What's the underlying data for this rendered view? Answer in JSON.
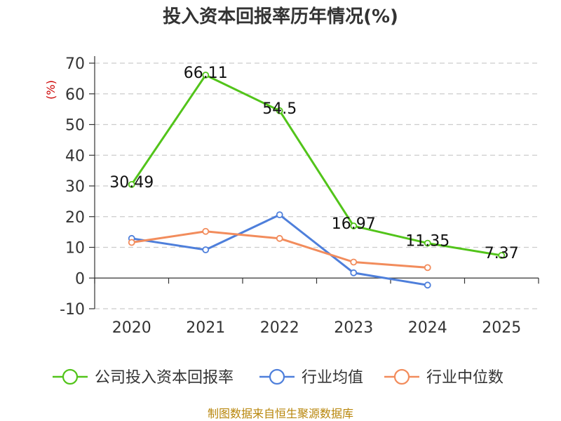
{
  "chart_data": {
    "type": "line",
    "title": "投入资本回报率历年情况(%)",
    "ylabel": "(%)",
    "xlabel": "",
    "categories": [
      "2020",
      "2021",
      "2022",
      "2023",
      "2024",
      "2025"
    ],
    "ylim": [
      -10,
      70
    ],
    "yticks": [
      -10,
      0,
      10,
      20,
      30,
      40,
      50,
      60,
      70
    ],
    "grid": true,
    "legend_position": "bottom",
    "series": [
      {
        "name": "公司投入资本回报率",
        "color": "#52c41a",
        "values": [
          30.49,
          66.11,
          54.5,
          16.97,
          11.35,
          7.37
        ],
        "labels": [
          "30.49",
          "66.11",
          "54.5",
          "16.97",
          "11.35",
          "7.37"
        ]
      },
      {
        "name": "行业均值",
        "color": "#4e7fdb",
        "values": [
          12.9,
          9.2,
          20.6,
          1.7,
          -2.3,
          null
        ]
      },
      {
        "name": "行业中位数",
        "color": "#f28c5c",
        "values": [
          11.6,
          15.2,
          12.9,
          5.2,
          3.4,
          null
        ]
      }
    ],
    "source": "制图数据来自恒生聚源数据库"
  }
}
